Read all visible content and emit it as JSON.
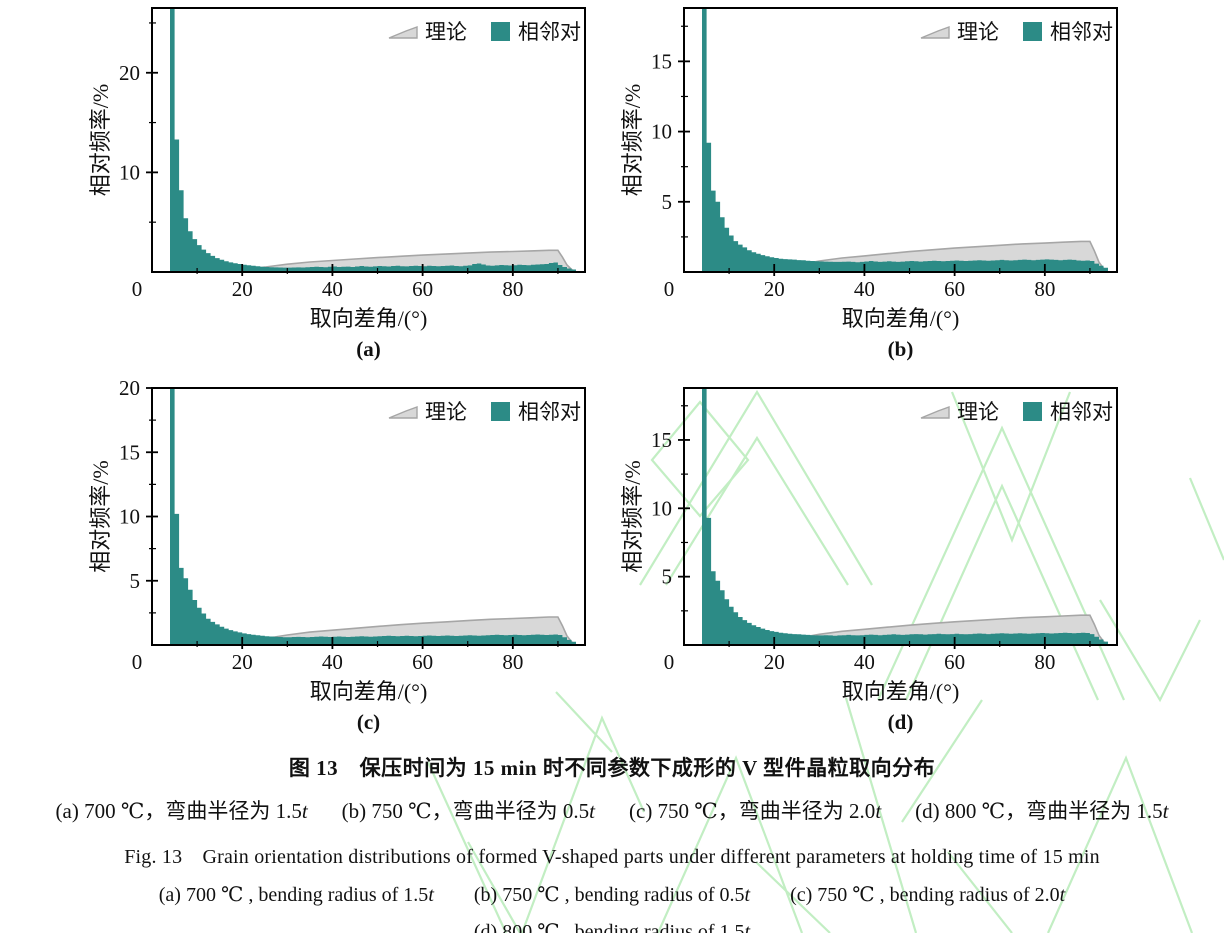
{
  "figure": {
    "caption": {
      "cn_title": "图 13　保压时间为 15 min 时不同参数下成形的 V 型件晶粒取向分布",
      "cn_items": [
        {
          "pre": "(a) 700 ℃，弯曲半径为 1.5",
          "it": "t"
        },
        {
          "pre": "(b) 750 ℃，弯曲半径为 0.5",
          "it": "t"
        },
        {
          "pre": "(c) 750 ℃，弯曲半径为 2.0",
          "it": "t"
        },
        {
          "pre": "(d) 800 ℃，弯曲半径为 1.5",
          "it": "t"
        }
      ],
      "en_title": "Fig. 13　Grain orientation distributions of formed V-shaped parts under different parameters at holding time of 15 min",
      "en_items_row1": [
        {
          "pre": "(a) 700 ℃ , bending radius of 1.5",
          "it": "t"
        },
        {
          "pre": "(b) 750 ℃ , bending radius of 0.5",
          "it": "t"
        },
        {
          "pre": "(c) 750 ℃ , bending radius of 2.0",
          "it": "t"
        }
      ],
      "en_items_row2": [
        {
          "pre": "(d) 800 ℃ , bending radius of 1.5",
          "it": "t"
        }
      ]
    }
  },
  "legend": {
    "theory_label": "理论",
    "pairs_label": "相邻对"
  },
  "axes": {
    "xlabel": "取向差角/(°)",
    "ylabel": "相对频率/%",
    "xtick_labels": [
      0,
      20,
      40,
      60,
      80
    ],
    "xticks": [
      20,
      40,
      60,
      80
    ],
    "xminor": [
      10,
      30,
      50,
      70,
      90
    ]
  },
  "colors": {
    "bars": "#2c8b86",
    "theory_fill": "#d8d8d8",
    "theory_stroke": "#a6a6a6",
    "axis": "#000000",
    "text": "#111111",
    "watermark": "#c2eec3"
  },
  "theory_curve": [
    [
      14,
      0.02
    ],
    [
      18,
      0.12
    ],
    [
      22,
      0.32
    ],
    [
      26,
      0.55
    ],
    [
      30,
      0.78
    ],
    [
      35,
      1.0
    ],
    [
      40,
      1.15
    ],
    [
      45,
      1.3
    ],
    [
      50,
      1.45
    ],
    [
      55,
      1.58
    ],
    [
      60,
      1.7
    ],
    [
      65,
      1.8
    ],
    [
      70,
      1.9
    ],
    [
      75,
      2.0
    ],
    [
      80,
      2.06
    ],
    [
      84,
      2.12
    ],
    [
      88,
      2.18
    ],
    [
      90,
      2.18
    ],
    [
      91,
      1.5
    ],
    [
      92,
      0.7
    ],
    [
      93.5,
      0.05
    ]
  ],
  "chart_data": [
    {
      "type": "bar",
      "panel": "a",
      "panel_label": "(a)",
      "xlabel": "取向差角/(°)",
      "ylabel": "相对频率/%",
      "xlim": [
        0,
        96
      ],
      "ylim": [
        0,
        26.5
      ],
      "yticks": [
        10,
        20
      ],
      "yminor": [
        5,
        15,
        25
      ],
      "bin_start": 4,
      "bin_width": 1,
      "values": [
        26.5,
        13.3,
        8.2,
        5.4,
        4.1,
        3.3,
        2.7,
        2.25,
        1.9,
        1.62,
        1.4,
        1.22,
        1.08,
        0.96,
        0.87,
        0.8,
        0.73,
        0.67,
        0.62,
        0.57,
        0.53,
        0.5,
        0.48,
        0.46,
        0.45,
        0.44,
        0.44,
        0.45,
        0.46,
        0.45,
        0.47,
        0.5,
        0.52,
        0.5,
        0.48,
        0.52,
        0.55,
        0.5,
        0.52,
        0.54,
        0.5,
        0.55,
        0.6,
        0.55,
        0.52,
        0.56,
        0.6,
        0.58,
        0.55,
        0.6,
        0.62,
        0.58,
        0.56,
        0.6,
        0.63,
        0.6,
        0.58,
        0.62,
        0.6,
        0.57,
        0.6,
        0.63,
        0.65,
        0.6,
        0.58,
        0.62,
        0.66,
        0.8,
        0.85,
        0.75,
        0.65,
        0.62,
        0.66,
        0.7,
        0.68,
        0.65,
        0.68,
        0.72,
        0.7,
        0.68,
        0.72,
        0.75,
        0.78,
        0.8,
        0.9,
        0.95,
        0.7,
        0.5,
        0.35,
        0.25
      ]
    },
    {
      "type": "bar",
      "panel": "b",
      "panel_label": "(b)",
      "xlabel": "取向差角/(°)",
      "ylabel": "相对频率/%",
      "xlim": [
        0,
        96
      ],
      "ylim": [
        0,
        18.8
      ],
      "yticks": [
        5,
        10,
        15
      ],
      "yminor": [
        2.5,
        7.5,
        12.5,
        17.5
      ],
      "bin_start": 4,
      "bin_width": 1,
      "values": [
        19,
        9.2,
        5.8,
        5.0,
        3.9,
        3.15,
        2.6,
        2.2,
        1.95,
        1.75,
        1.55,
        1.4,
        1.3,
        1.2,
        1.12,
        1.05,
        1.0,
        0.95,
        0.92,
        0.9,
        0.88,
        0.85,
        0.83,
        0.8,
        0.78,
        0.76,
        0.75,
        0.74,
        0.73,
        0.72,
        0.72,
        0.73,
        0.74,
        0.72,
        0.7,
        0.72,
        0.75,
        0.78,
        0.75,
        0.72,
        0.74,
        0.76,
        0.74,
        0.72,
        0.74,
        0.76,
        0.78,
        0.76,
        0.74,
        0.76,
        0.78,
        0.8,
        0.78,
        0.76,
        0.78,
        0.8,
        0.82,
        0.8,
        0.78,
        0.8,
        0.82,
        0.84,
        0.82,
        0.8,
        0.82,
        0.84,
        0.86,
        0.84,
        0.82,
        0.84,
        0.86,
        0.88,
        0.86,
        0.84,
        0.86,
        0.88,
        0.9,
        0.88,
        0.86,
        0.84,
        0.86,
        0.88,
        0.86,
        0.82,
        0.8,
        0.82,
        0.78,
        0.6,
        0.45,
        0.3
      ]
    },
    {
      "type": "bar",
      "panel": "c",
      "panel_label": "(c)",
      "xlabel": "取向差角/(°)",
      "ylabel": "相对频率/%",
      "xlim": [
        0,
        96
      ],
      "ylim": [
        0,
        20
      ],
      "yticks": [
        5,
        10,
        15,
        20
      ],
      "yminor": [
        2.5,
        7.5,
        12.5,
        17.5
      ],
      "bin_start": 4,
      "bin_width": 1,
      "values": [
        20.5,
        10.2,
        6.0,
        5.2,
        4.3,
        3.5,
        2.9,
        2.45,
        2.05,
        1.8,
        1.6,
        1.42,
        1.28,
        1.16,
        1.06,
        0.98,
        0.9,
        0.85,
        0.8,
        0.76,
        0.72,
        0.68,
        0.66,
        0.64,
        0.62,
        0.6,
        0.6,
        0.62,
        0.63,
        0.62,
        0.6,
        0.62,
        0.64,
        0.66,
        0.64,
        0.62,
        0.64,
        0.66,
        0.64,
        0.62,
        0.64,
        0.66,
        0.68,
        0.66,
        0.64,
        0.66,
        0.68,
        0.7,
        0.72,
        0.7,
        0.68,
        0.7,
        0.72,
        0.7,
        0.68,
        0.7,
        0.72,
        0.74,
        0.72,
        0.7,
        0.72,
        0.74,
        0.72,
        0.7,
        0.72,
        0.74,
        0.76,
        0.74,
        0.72,
        0.74,
        0.76,
        0.78,
        0.8,
        0.78,
        0.76,
        0.78,
        0.8,
        0.78,
        0.76,
        0.78,
        0.8,
        0.82,
        0.8,
        0.78,
        0.8,
        0.82,
        0.78,
        0.6,
        0.4,
        0.25
      ]
    },
    {
      "type": "bar",
      "panel": "d",
      "panel_label": "(d)",
      "xlabel": "取向差角/(°)",
      "ylabel": "相对频率/%",
      "xlim": [
        0,
        96
      ],
      "ylim": [
        0,
        18.8
      ],
      "yticks": [
        5,
        10,
        15
      ],
      "yminor": [
        2.5,
        7.5,
        12.5,
        17.5
      ],
      "bin_start": 4,
      "bin_width": 1,
      "values": [
        19,
        9.3,
        5.4,
        4.7,
        4.0,
        3.35,
        2.8,
        2.4,
        2.05,
        1.82,
        1.62,
        1.45,
        1.32,
        1.2,
        1.1,
        1.02,
        0.96,
        0.9,
        0.86,
        0.82,
        0.8,
        0.78,
        0.76,
        0.74,
        0.72,
        0.7,
        0.7,
        0.72,
        0.7,
        0.68,
        0.7,
        0.72,
        0.74,
        0.72,
        0.7,
        0.72,
        0.74,
        0.76,
        0.74,
        0.72,
        0.74,
        0.76,
        0.78,
        0.76,
        0.74,
        0.76,
        0.78,
        0.8,
        0.78,
        0.76,
        0.78,
        0.8,
        0.82,
        0.8,
        0.78,
        0.8,
        0.82,
        0.8,
        0.78,
        0.8,
        0.82,
        0.84,
        0.82,
        0.8,
        0.82,
        0.84,
        0.86,
        0.84,
        0.82,
        0.84,
        0.86,
        0.84,
        0.82,
        0.84,
        0.86,
        0.88,
        0.86,
        0.84,
        0.86,
        0.88,
        0.9,
        0.88,
        0.86,
        0.88,
        0.9,
        0.88,
        0.8,
        0.6,
        0.4,
        0.25
      ]
    }
  ]
}
